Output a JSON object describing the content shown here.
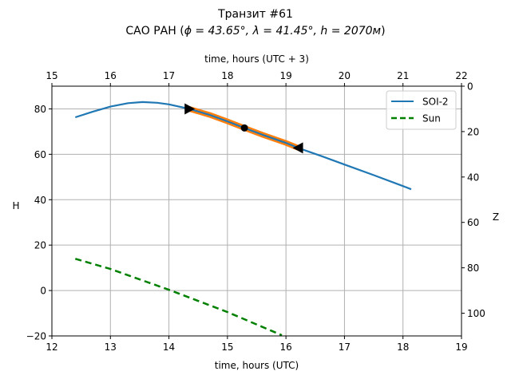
{
  "chart_data": {
    "type": "line",
    "title": "Транзит #61",
    "subtitle_prefix": "САО РАН (",
    "subtitle_math": "ϕ = 43.65°, λ = 41.45°, h = 2070м",
    "subtitle_suffix": ")",
    "xlabel": "time, hours (UTC)",
    "xlabel_top": "time, hours (UTC + 3)",
    "ylabel": "H",
    "ylabel_right": "Z",
    "xlim": [
      12,
      19
    ],
    "xlim_top": [
      15,
      22
    ],
    "ylim": [
      -20,
      90
    ],
    "ylim_right": [
      110,
      0
    ],
    "xticks": [
      "12",
      "13",
      "14",
      "15",
      "16",
      "17",
      "18",
      "19"
    ],
    "xticks_top": [
      "15",
      "16",
      "17",
      "18",
      "19",
      "20",
      "21",
      "22"
    ],
    "yticks": [
      "−20",
      "0",
      "20",
      "40",
      "60",
      "80"
    ],
    "yticks_right": [
      "0",
      "20",
      "40",
      "60",
      "80",
      "100"
    ],
    "grid": true,
    "legend_position": "top-right",
    "series": [
      {
        "name": "SOI-2",
        "color": "#1f77b4",
        "style": "solid",
        "x": [
          12.4,
          12.7,
          13.0,
          13.3,
          13.55,
          13.8,
          14.0,
          14.35,
          14.7,
          15.0,
          15.29,
          15.6,
          16.0,
          16.21,
          16.6,
          17.0,
          17.5,
          18.0,
          18.14
        ],
        "y": [
          76.3,
          78.8,
          81.0,
          82.5,
          83.0,
          82.7,
          82.0,
          80.0,
          77.3,
          74.5,
          71.6,
          68.6,
          65.0,
          62.8,
          59.3,
          55.5,
          50.8,
          46.0,
          44.6
        ]
      },
      {
        "name": "Sun",
        "color": "#008000",
        "style": "dashed",
        "x": [
          12.4,
          13.0,
          14.0,
          15.0,
          15.93
        ],
        "y": [
          14.0,
          9.5,
          0.3,
          -9.5,
          -19.7
        ]
      }
    ],
    "highlight": {
      "color": "#ff7f0e",
      "x": [
        14.35,
        14.7,
        15.0,
        15.29,
        15.6,
        16.0,
        16.21
      ],
      "y": [
        80.0,
        77.3,
        74.5,
        71.6,
        68.6,
        65.0,
        62.8
      ]
    },
    "markers": [
      {
        "type": "triangle-right",
        "x": 14.35,
        "y": 80.0
      },
      {
        "type": "circle",
        "x": 15.29,
        "y": 71.6
      },
      {
        "type": "triangle-left",
        "x": 16.21,
        "y": 62.8
      }
    ]
  }
}
